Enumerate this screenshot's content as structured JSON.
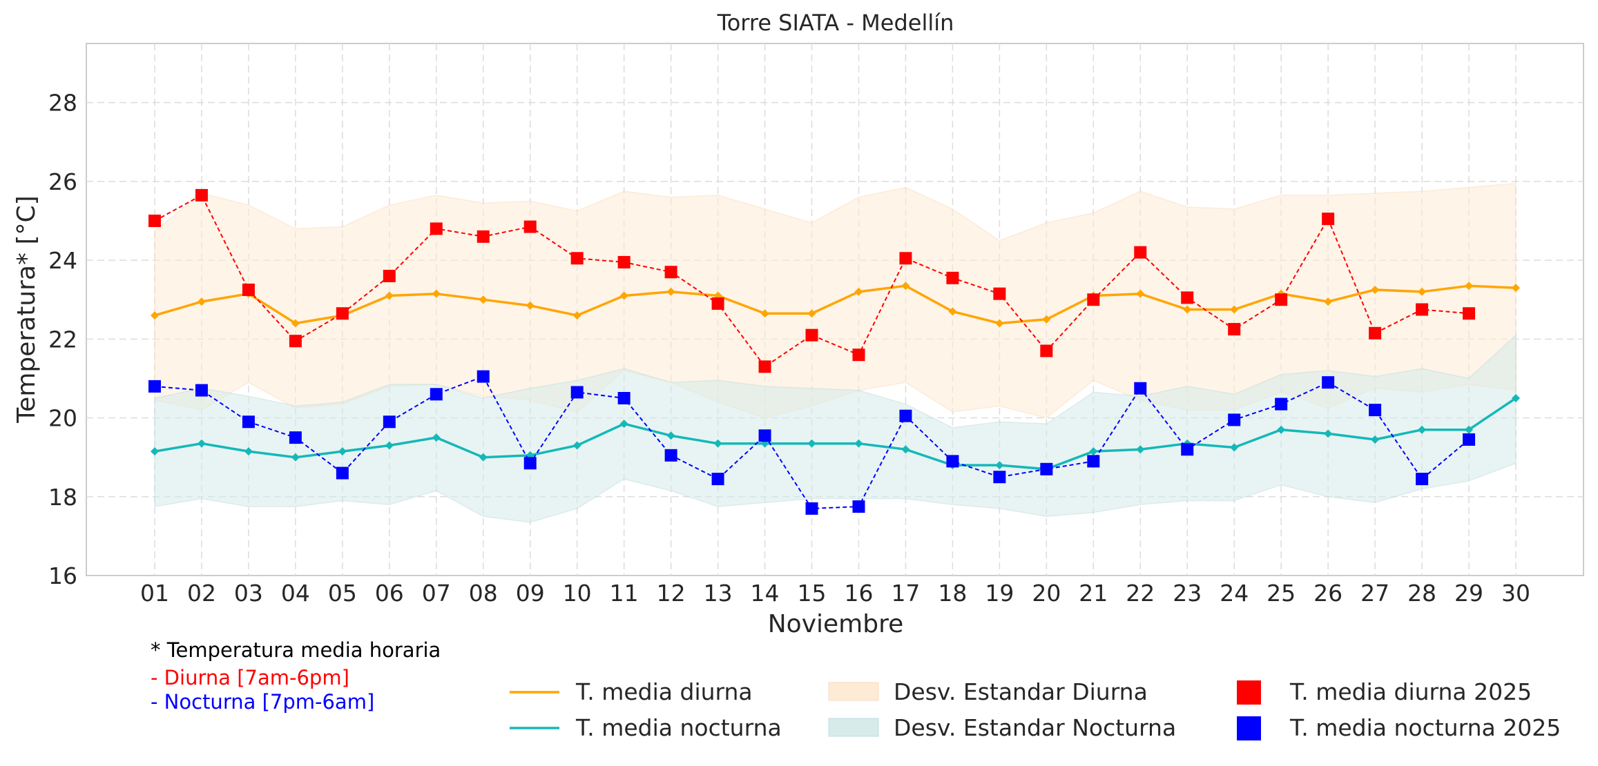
{
  "chart_data": {
    "type": "line",
    "title": "Torre SIATA - Medellín",
    "xlabel": "Noviembre",
    "ylabel": "Temperatura* [°C]",
    "ylim": [
      16,
      29.5
    ],
    "yticks": [
      16,
      18,
      20,
      22,
      24,
      26,
      28
    ],
    "grid": true,
    "categories": [
      "01",
      "02",
      "03",
      "04",
      "05",
      "06",
      "07",
      "08",
      "09",
      "10",
      "11",
      "12",
      "13",
      "14",
      "15",
      "16",
      "17",
      "18",
      "19",
      "20",
      "21",
      "22",
      "23",
      "24",
      "25",
      "26",
      "27",
      "28",
      "29",
      "30"
    ],
    "colors": {
      "diurna_media": "#ffa500",
      "nocturna_media": "#14b8b8",
      "diurna_band": "#fdebd6",
      "nocturna_band": "#d6ebea",
      "diurna_2025": "#ff0000",
      "nocturna_2025": "#0000ff",
      "grid": "#dcdcdc",
      "axis": "#cccccc",
      "text": "#262626"
    },
    "series": [
      {
        "name": "T. media diurna",
        "kind": "line",
        "values": [
          22.6,
          22.95,
          23.15,
          22.4,
          22.6,
          23.1,
          23.15,
          23.0,
          22.85,
          22.6,
          23.1,
          23.2,
          23.1,
          22.65,
          22.65,
          23.2,
          23.35,
          22.7,
          22.4,
          22.5,
          23.1,
          23.15,
          22.75,
          22.75,
          23.15,
          22.95,
          23.25,
          23.2,
          23.35,
          23.3
        ]
      },
      {
        "name": "T. media nocturna",
        "kind": "line",
        "values": [
          19.15,
          19.35,
          19.15,
          19.0,
          19.15,
          19.3,
          19.5,
          19.0,
          19.05,
          19.3,
          19.85,
          19.55,
          19.35,
          19.35,
          19.35,
          19.35,
          19.2,
          18.8,
          18.8,
          18.7,
          19.15,
          19.2,
          19.35,
          19.25,
          19.7,
          19.6,
          19.45,
          19.7,
          19.7,
          20.5
        ]
      },
      {
        "name": "Desv. Estandar Diurna",
        "kind": "band",
        "lower": [
          20.45,
          20.2,
          20.9,
          20.25,
          20.35,
          20.8,
          20.85,
          20.55,
          20.45,
          20.15,
          21.2,
          20.9,
          20.4,
          20.0,
          20.3,
          20.7,
          20.9,
          20.15,
          20.3,
          20.0,
          20.95,
          20.45,
          20.2,
          20.2,
          20.65,
          20.25,
          20.75,
          20.65,
          20.85,
          20.7
        ],
        "upper": [
          24.75,
          25.7,
          25.4,
          24.8,
          24.85,
          25.4,
          25.65,
          25.45,
          25.5,
          25.25,
          25.75,
          25.6,
          25.65,
          25.3,
          24.95,
          25.6,
          25.85,
          25.3,
          24.5,
          24.95,
          25.2,
          25.75,
          25.35,
          25.3,
          25.65,
          25.65,
          25.7,
          25.75,
          25.85,
          25.95
        ]
      },
      {
        "name": "Desv. Estandar Nocturna",
        "kind": "band",
        "lower": [
          17.75,
          17.95,
          17.75,
          17.75,
          17.9,
          17.8,
          18.15,
          17.5,
          17.35,
          17.7,
          18.45,
          18.15,
          17.75,
          17.85,
          17.95,
          17.95,
          17.95,
          17.8,
          17.7,
          17.5,
          17.6,
          17.8,
          17.9,
          17.9,
          18.3,
          18.0,
          17.85,
          18.2,
          18.4,
          18.85
        ],
        "upper": [
          20.5,
          20.75,
          20.55,
          20.3,
          20.4,
          20.85,
          20.85,
          20.5,
          20.75,
          20.95,
          21.25,
          20.9,
          20.95,
          20.8,
          20.75,
          20.7,
          20.35,
          19.75,
          19.9,
          19.85,
          20.65,
          20.55,
          20.8,
          20.6,
          21.1,
          21.2,
          21.05,
          21.25,
          21.0,
          22.1
        ]
      },
      {
        "name": "T. media diurna 2025",
        "kind": "markers",
        "values": [
          25.0,
          25.65,
          23.25,
          21.95,
          22.65,
          23.6,
          24.8,
          24.6,
          24.85,
          24.05,
          23.95,
          23.7,
          22.9,
          21.3,
          22.1,
          21.6,
          24.05,
          23.55,
          23.15,
          21.7,
          23.0,
          24.2,
          23.05,
          22.25,
          23.0,
          25.05,
          22.15,
          22.75,
          22.65,
          null
        ]
      },
      {
        "name": "T. media nocturna 2025",
        "kind": "markers",
        "values": [
          20.8,
          20.7,
          19.9,
          19.5,
          18.6,
          19.9,
          20.6,
          21.05,
          18.85,
          20.65,
          20.5,
          19.05,
          18.45,
          19.55,
          17.7,
          17.75,
          20.05,
          18.9,
          18.5,
          18.7,
          18.9,
          20.75,
          19.2,
          19.95,
          20.35,
          20.9,
          20.2,
          18.45,
          19.45,
          null
        ]
      }
    ],
    "legend": {
      "placement": "bottom",
      "entries": [
        "T. media diurna",
        "T. media nocturna",
        "Desv. Estandar Diurna",
        "Desv. Estandar Nocturna",
        "T. media diurna 2025",
        "T. media nocturna 2025"
      ]
    },
    "annotations": {
      "note": "* Temperatura media horaria",
      "diurna": "- Diurna [7am-6pm]",
      "nocturna": "- Nocturna [7pm-6am]"
    }
  }
}
